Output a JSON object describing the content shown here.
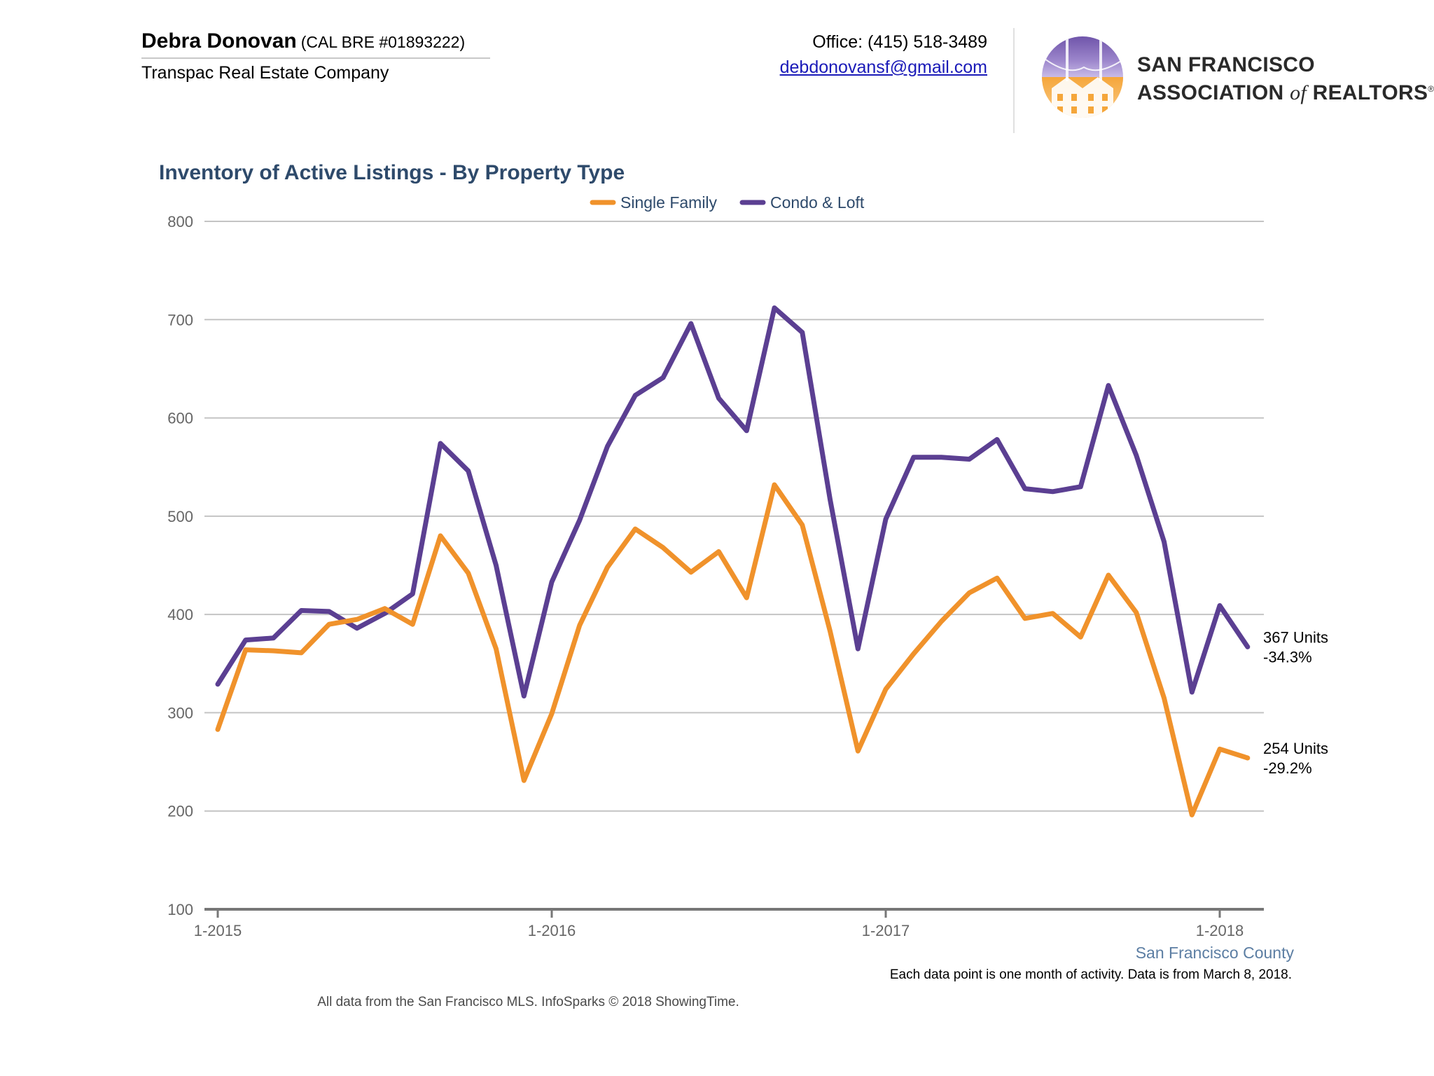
{
  "header": {
    "agent_name": "Debra Donovan",
    "agent_license": "(CAL BRE #01893222)",
    "company": "Transpac Real Estate Company",
    "office_phone": "Office: (415) 518-3489",
    "email": "debdonovansf@gmail.com",
    "logo": {
      "icon": "golden-gate-houses-logo",
      "line1": "SAN FRANCISCO",
      "line2_a": "ASSOCIATION ",
      "line2_of": "of",
      "line2_b": " REALTORS",
      "registered_mark": "®",
      "colors": {
        "purple": "#6d52a8",
        "orange": "#f09a2c"
      }
    }
  },
  "chart_data": {
    "type": "line",
    "title": "Inventory of Active Listings - By Property Type",
    "xlabel": "",
    "ylabel": "",
    "ylim": [
      100,
      800
    ],
    "yticks": [
      100,
      200,
      300,
      400,
      500,
      600,
      700,
      800
    ],
    "grid": true,
    "legend_position": "top-center",
    "x": [
      "1-2015",
      "2-2015",
      "3-2015",
      "4-2015",
      "5-2015",
      "6-2015",
      "7-2015",
      "8-2015",
      "9-2015",
      "10-2015",
      "11-2015",
      "12-2015",
      "1-2016",
      "2-2016",
      "3-2016",
      "4-2016",
      "5-2016",
      "6-2016",
      "7-2016",
      "8-2016",
      "9-2016",
      "10-2016",
      "11-2016",
      "12-2016",
      "1-2017",
      "2-2017",
      "3-2017",
      "4-2017",
      "5-2017",
      "6-2017",
      "7-2017",
      "8-2017",
      "9-2017",
      "10-2017",
      "11-2017",
      "12-2017",
      "1-2018",
      "2-2018"
    ],
    "xtick_labels": [
      "1-2015",
      "1-2016",
      "1-2017",
      "1-2018"
    ],
    "region_label": "San Francisco County",
    "series": [
      {
        "name": "Single Family",
        "color": "#f0922b",
        "values": [
          283,
          364,
          363,
          361,
          390,
          395,
          406,
          390,
          480,
          442,
          365,
          231,
          299,
          389,
          448,
          487,
          468,
          443,
          464,
          417,
          532,
          491,
          383,
          261,
          324,
          360,
          393,
          422,
          437,
          396,
          401,
          377,
          440,
          402,
          315,
          196,
          263,
          254
        ],
        "end_label": [
          "254 Units",
          "-29.2%"
        ]
      },
      {
        "name": "Condo & Loft",
        "color": "#5b3f92",
        "values": [
          329,
          374,
          376,
          404,
          403,
          386,
          401,
          421,
          574,
          546,
          450,
          317,
          433,
          496,
          571,
          623,
          641,
          696,
          620,
          587,
          712,
          687,
          517,
          365,
          497,
          560,
          560,
          558,
          578,
          528,
          525,
          530,
          633,
          562,
          474,
          321,
          409,
          367
        ],
        "end_label": [
          "367 Units",
          "-34.3%"
        ]
      }
    ]
  },
  "footer": {
    "note": "Each data point is one month of activity. Data is from March 8, 2018.",
    "source": "All data from the San Francisco MLS. InfoSparks © 2018 ShowingTime."
  }
}
